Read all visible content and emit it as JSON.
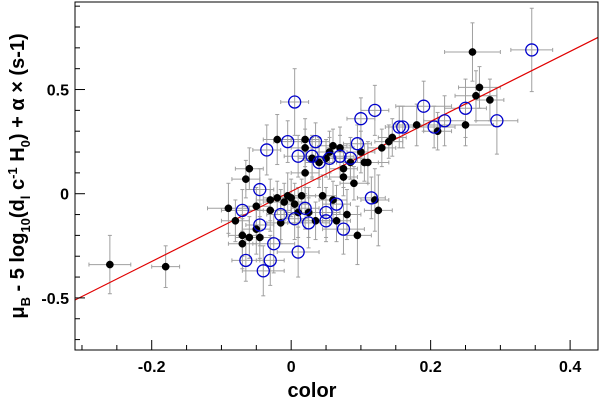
{
  "chart_data": {
    "type": "scatter",
    "xlabel": "color",
    "ylabel": {
      "parts": [
        "μ",
        "B",
        " - 5 log",
        "10",
        "(d",
        "l",
        " c",
        "-1",
        " H",
        "0",
        ") + α × (s-1)"
      ]
    },
    "xlim": [
      -0.31,
      0.44
    ],
    "ylim": [
      -0.75,
      0.92
    ],
    "x_ticks": [
      -0.2,
      0,
      0.2,
      0.4
    ],
    "x_tick_labels": [
      "-0.2",
      "0",
      "0.2",
      "0.4"
    ],
    "y_ticks": [
      -0.5,
      0,
      0.5
    ],
    "y_tick_labels": [
      "-0.5",
      "0",
      "0.5"
    ],
    "grid": false,
    "fit_line": {
      "x": [
        -0.31,
        0.44
      ],
      "y": [
        -0.51,
        0.75
      ],
      "color": "#e00000"
    },
    "colors": {
      "filled": "#000000",
      "open": "#0000cc",
      "errorbar": "#a0a0a0",
      "line": "#e00000"
    },
    "series": [
      {
        "marker": "filled-circle",
        "points": [
          {
            "x": -0.26,
            "y": -0.34,
            "xerr": 0.03,
            "yerr": 0.14
          },
          {
            "x": -0.18,
            "y": -0.35,
            "xerr": 0.02,
            "yerr": 0.1
          },
          {
            "x": -0.09,
            "y": -0.07,
            "xerr": 0.03,
            "yerr": 0.12
          },
          {
            "x": -0.08,
            "y": -0.13,
            "xerr": 0.02,
            "yerr": 0.1
          },
          {
            "x": -0.07,
            "y": -0.2,
            "xerr": 0.02,
            "yerr": 0.1
          },
          {
            "x": -0.07,
            "y": -0.24,
            "xerr": 0.02,
            "yerr": 0.12
          },
          {
            "x": -0.065,
            "y": 0.07,
            "xerr": 0.02,
            "yerr": 0.09
          },
          {
            "x": -0.06,
            "y": 0.12,
            "xerr": 0.02,
            "yerr": 0.1
          },
          {
            "x": -0.06,
            "y": -0.21,
            "xerr": 0.02,
            "yerr": 0.1
          },
          {
            "x": -0.05,
            "y": -0.06,
            "xerr": 0.02,
            "yerr": 0.09
          },
          {
            "x": -0.05,
            "y": -0.17,
            "xerr": 0.02,
            "yerr": 0.12
          },
          {
            "x": -0.045,
            "y": -0.21,
            "xerr": 0.02,
            "yerr": 0.1
          },
          {
            "x": -0.03,
            "y": -0.03,
            "xerr": 0.02,
            "yerr": 0.1
          },
          {
            "x": -0.03,
            "y": -0.08,
            "xerr": 0.03,
            "yerr": 0.1
          },
          {
            "x": -0.02,
            "y": 0.26,
            "xerr": 0.02,
            "yerr": 0.12
          },
          {
            "x": -0.02,
            "y": -0.02,
            "xerr": 0.02,
            "yerr": 0.08
          },
          {
            "x": -0.015,
            "y": -0.14,
            "xerr": 0.02,
            "yerr": 0.1
          },
          {
            "x": -0.01,
            "y": -0.04,
            "xerr": 0.03,
            "yerr": 0.09
          },
          {
            "x": -0.005,
            "y": -0.01,
            "xerr": 0.02,
            "yerr": 0.11
          },
          {
            "x": 0.0,
            "y": -0.02,
            "xerr": 0.02,
            "yerr": 0.09
          },
          {
            "x": 0.005,
            "y": -0.05,
            "xerr": 0.02,
            "yerr": 0.1
          },
          {
            "x": 0.01,
            "y": -0.09,
            "xerr": 0.02,
            "yerr": 0.12
          },
          {
            "x": 0.015,
            "y": -0.01,
            "xerr": 0.02,
            "yerr": 0.08
          },
          {
            "x": 0.02,
            "y": 0.26,
            "xerr": 0.02,
            "yerr": 0.1
          },
          {
            "x": 0.02,
            "y": 0.22,
            "xerr": 0.02,
            "yerr": 0.09
          },
          {
            "x": 0.02,
            "y": 0.1,
            "xerr": 0.02,
            "yerr": 0.1
          },
          {
            "x": 0.025,
            "y": -0.09,
            "xerr": 0.02,
            "yerr": 0.12
          },
          {
            "x": 0.03,
            "y": 0.17,
            "xerr": 0.02,
            "yerr": 0.1
          },
          {
            "x": 0.035,
            "y": -0.13,
            "xerr": 0.02,
            "yerr": 0.09
          },
          {
            "x": 0.04,
            "y": 0.15,
            "xerr": 0.02,
            "yerr": 0.12
          },
          {
            "x": 0.045,
            "y": -0.01,
            "xerr": 0.02,
            "yerr": 0.1
          },
          {
            "x": 0.05,
            "y": 0.17,
            "xerr": 0.02,
            "yerr": 0.09
          },
          {
            "x": 0.055,
            "y": 0.2,
            "xerr": 0.02,
            "yerr": 0.1
          },
          {
            "x": 0.06,
            "y": -0.03,
            "xerr": 0.02,
            "yerr": 0.09
          },
          {
            "x": 0.06,
            "y": 0.23,
            "xerr": 0.02,
            "yerr": 0.08
          },
          {
            "x": 0.065,
            "y": -0.13,
            "xerr": 0.02,
            "yerr": 0.1
          },
          {
            "x": 0.07,
            "y": 0.22,
            "xerr": 0.02,
            "yerr": 0.1
          },
          {
            "x": 0.075,
            "y": 0.12,
            "xerr": 0.02,
            "yerr": 0.09
          },
          {
            "x": 0.075,
            "y": 0.08,
            "xerr": 0.02,
            "yerr": 0.09
          },
          {
            "x": 0.08,
            "y": -0.1,
            "xerr": 0.02,
            "yerr": 0.12
          },
          {
            "x": 0.085,
            "y": 0.15,
            "xerr": 0.02,
            "yerr": 0.08
          },
          {
            "x": 0.09,
            "y": 0.05,
            "xerr": 0.02,
            "yerr": 0.08
          },
          {
            "x": 0.095,
            "y": -0.2,
            "xerr": 0.02,
            "yerr": 0.14
          },
          {
            "x": 0.1,
            "y": 0.2,
            "xerr": 0.02,
            "yerr": 0.1
          },
          {
            "x": 0.105,
            "y": 0.15,
            "xerr": 0.02,
            "yerr": 0.09
          },
          {
            "x": 0.11,
            "y": 0.15,
            "xerr": 0.03,
            "yerr": 0.1
          },
          {
            "x": 0.12,
            "y": -0.03,
            "xerr": 0.02,
            "yerr": 0.15
          },
          {
            "x": 0.125,
            "y": -0.08,
            "xerr": 0.02,
            "yerr": 0.17
          },
          {
            "x": 0.13,
            "y": 0.22,
            "xerr": 0.02,
            "yerr": 0.09
          },
          {
            "x": 0.14,
            "y": 0.25,
            "xerr": 0.02,
            "yerr": 0.08
          },
          {
            "x": 0.145,
            "y": 0.27,
            "xerr": 0.02,
            "yerr": 0.09
          },
          {
            "x": 0.18,
            "y": 0.33,
            "xerr": 0.03,
            "yerr": 0.1
          },
          {
            "x": 0.21,
            "y": 0.3,
            "xerr": 0.02,
            "yerr": 0.09
          },
          {
            "x": 0.25,
            "y": 0.33,
            "xerr": 0.04,
            "yerr": 0.1
          },
          {
            "x": 0.26,
            "y": 0.68,
            "xerr": 0.04,
            "yerr": 0.14
          },
          {
            "x": 0.265,
            "y": 0.47,
            "xerr": 0.03,
            "yerr": 0.12
          },
          {
            "x": 0.27,
            "y": 0.51,
            "xerr": 0.03,
            "yerr": 0.1
          },
          {
            "x": 0.285,
            "y": 0.45,
            "xerr": 0.02,
            "yerr": 0.1
          }
        ]
      },
      {
        "marker": "open-circle",
        "points": [
          {
            "x": -0.07,
            "y": -0.08,
            "xerr": 0.03,
            "yerr": 0.1
          },
          {
            "x": -0.065,
            "y": -0.32,
            "xerr": 0.02,
            "yerr": 0.1
          },
          {
            "x": -0.045,
            "y": 0.02,
            "xerr": 0.02,
            "yerr": 0.1
          },
          {
            "x": -0.045,
            "y": -0.15,
            "xerr": 0.02,
            "yerr": 0.1
          },
          {
            "x": -0.04,
            "y": -0.37,
            "xerr": 0.03,
            "yerr": 0.12
          },
          {
            "x": -0.035,
            "y": 0.21,
            "xerr": 0.02,
            "yerr": 0.12
          },
          {
            "x": -0.03,
            "y": -0.32,
            "xerr": 0.02,
            "yerr": 0.12
          },
          {
            "x": -0.025,
            "y": -0.24,
            "xerr": 0.03,
            "yerr": 0.14
          },
          {
            "x": -0.015,
            "y": -0.1,
            "xerr": 0.02,
            "yerr": 0.12
          },
          {
            "x": -0.005,
            "y": 0.25,
            "xerr": 0.02,
            "yerr": 0.1
          },
          {
            "x": 0.005,
            "y": -0.12,
            "xerr": 0.02,
            "yerr": 0.1
          },
          {
            "x": 0.005,
            "y": 0.44,
            "xerr": 0.02,
            "yerr": 0.16
          },
          {
            "x": 0.01,
            "y": 0.18,
            "xerr": 0.02,
            "yerr": 0.1
          },
          {
            "x": 0.01,
            "y": -0.28,
            "xerr": 0.03,
            "yerr": 0.12
          },
          {
            "x": 0.02,
            "y": -0.07,
            "xerr": 0.02,
            "yerr": 0.1
          },
          {
            "x": 0.025,
            "y": -0.14,
            "xerr": 0.03,
            "yerr": 0.12
          },
          {
            "x": 0.03,
            "y": 0.18,
            "xerr": 0.02,
            "yerr": 0.1
          },
          {
            "x": 0.035,
            "y": 0.25,
            "xerr": 0.02,
            "yerr": 0.09
          },
          {
            "x": 0.04,
            "y": 0.15,
            "xerr": 0.02,
            "yerr": 0.08
          },
          {
            "x": 0.05,
            "y": -0.09,
            "xerr": 0.02,
            "yerr": 0.12
          },
          {
            "x": 0.05,
            "y": -0.13,
            "xerr": 0.02,
            "yerr": 0.1
          },
          {
            "x": 0.055,
            "y": 0.17,
            "xerr": 0.02,
            "yerr": 0.1
          },
          {
            "x": 0.065,
            "y": -0.05,
            "xerr": 0.02,
            "yerr": 0.09
          },
          {
            "x": 0.07,
            "y": 0.18,
            "xerr": 0.02,
            "yerr": 0.1
          },
          {
            "x": 0.075,
            "y": -0.17,
            "xerr": 0.03,
            "yerr": 0.12
          },
          {
            "x": 0.085,
            "y": 0.17,
            "xerr": 0.02,
            "yerr": 0.1
          },
          {
            "x": 0.095,
            "y": 0.24,
            "xerr": 0.02,
            "yerr": 0.09
          },
          {
            "x": 0.1,
            "y": 0.36,
            "xerr": 0.02,
            "yerr": 0.1
          },
          {
            "x": 0.115,
            "y": -0.02,
            "xerr": 0.02,
            "yerr": 0.1
          },
          {
            "x": 0.12,
            "y": 0.4,
            "xerr": 0.02,
            "yerr": 0.12
          },
          {
            "x": 0.155,
            "y": 0.32,
            "xerr": 0.02,
            "yerr": 0.1
          },
          {
            "x": 0.16,
            "y": 0.32,
            "xerr": 0.02,
            "yerr": 0.1
          },
          {
            "x": 0.19,
            "y": 0.42,
            "xerr": 0.04,
            "yerr": 0.12
          },
          {
            "x": 0.205,
            "y": 0.32,
            "xerr": 0.03,
            "yerr": 0.1
          },
          {
            "x": 0.22,
            "y": 0.35,
            "xerr": 0.03,
            "yerr": 0.12
          },
          {
            "x": 0.25,
            "y": 0.41,
            "xerr": 0.03,
            "yerr": 0.14
          },
          {
            "x": 0.295,
            "y": 0.35,
            "xerr": 0.03,
            "yerr": 0.16
          },
          {
            "x": 0.345,
            "y": 0.69,
            "xerr": 0.03,
            "yerr": 0.2
          }
        ]
      }
    ]
  }
}
